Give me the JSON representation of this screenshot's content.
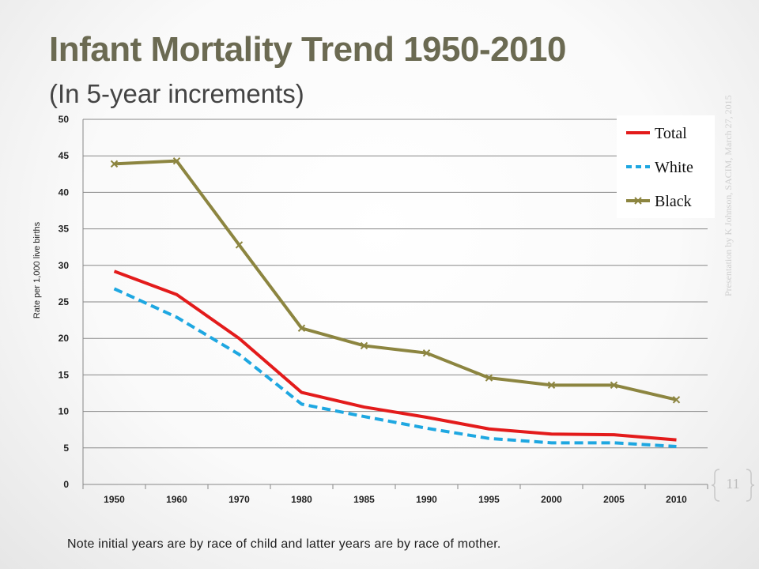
{
  "slide": {
    "title": "Infant Mortality Trend 1950-2010",
    "subtitle": "(In 5-year increments)",
    "footnote": "Note initial years are by race of child and latter years are by race of mother.",
    "side_text": "Presentation by K Johnson, SACIM, March 27, 2015",
    "page_number": "11"
  },
  "colors": {
    "title": "#6b6a52",
    "total": "#e31b1b",
    "white": "#1ea7e1",
    "black": "#8c8540",
    "grid": "#878787"
  },
  "chart_data": {
    "type": "line",
    "title": "",
    "xlabel": "",
    "ylabel": "Rate per 1,000 live births",
    "categories": [
      "1950",
      "1960",
      "1970",
      "1980",
      "1985",
      "1990",
      "1995",
      "2000",
      "2005",
      "2010"
    ],
    "ylim": [
      0,
      50
    ],
    "yticks": [
      0,
      5,
      10,
      15,
      20,
      25,
      30,
      35,
      40,
      45,
      50
    ],
    "grid": true,
    "legend_position": "top-right",
    "series": [
      {
        "name": "Total",
        "style": "solid",
        "marker": "none",
        "color": "#e31b1b",
        "values": [
          29.2,
          26.0,
          20.0,
          12.6,
          10.6,
          9.2,
          7.6,
          6.9,
          6.8,
          6.1
        ]
      },
      {
        "name": "White",
        "style": "dashed",
        "marker": "none",
        "color": "#1ea7e1",
        "values": [
          26.8,
          22.9,
          17.8,
          11.0,
          9.3,
          7.7,
          6.3,
          5.7,
          5.7,
          5.2
        ]
      },
      {
        "name": "Black",
        "style": "solid",
        "marker": "x",
        "color": "#8c8540",
        "values": [
          43.9,
          44.3,
          32.8,
          21.4,
          19.0,
          18.0,
          14.6,
          13.6,
          13.6,
          11.6
        ]
      }
    ]
  }
}
